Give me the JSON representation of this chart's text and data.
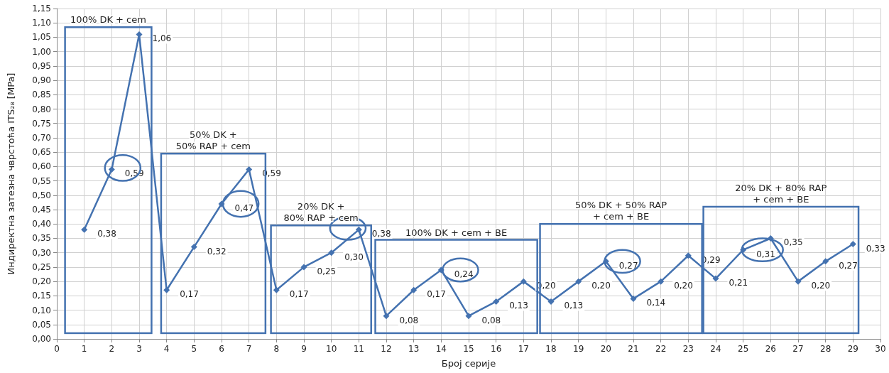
{
  "chart_data": {
    "type": "line",
    "xlabel": "Број серије",
    "ylabel": "Индиректна затезна чврстоћа ITS₂₈ [MPa]",
    "x": [
      1,
      2,
      3,
      4,
      5,
      6,
      7,
      8,
      9,
      10,
      11,
      12,
      13,
      14,
      15,
      16,
      17,
      18,
      19,
      20,
      21,
      22,
      23,
      24,
      25,
      26,
      27,
      28,
      29
    ],
    "series": [
      {
        "color": "#4472b0",
        "values": [
          0.38,
          0.59,
          1.06,
          0.17,
          0.32,
          0.47,
          0.59,
          0.17,
          0.25,
          0.3,
          0.38,
          0.08,
          0.17,
          0.24,
          0.08,
          0.13,
          0.2,
          0.13,
          0.2,
          0.27,
          0.14,
          0.2,
          0.29,
          0.21,
          0.31,
          0.35,
          0.2,
          0.27,
          0.33
        ],
        "value_labels": [
          "0,38",
          "0,59",
          "1,06",
          "0,17",
          "0,32",
          "0,47",
          "0,59",
          "0,17",
          "0,25",
          "0,30",
          "0,38",
          "0,08",
          "0,17",
          "0,24",
          "0,08",
          "0,13",
          "0,20",
          "0,13",
          "0,20",
          "0,27",
          "0,14",
          "0,20",
          "0,29",
          "0,21",
          "0,31",
          "0,35",
          "0,20",
          "0,27",
          "0,33"
        ]
      }
    ],
    "xlim": [
      0,
      30
    ],
    "xticks": [
      0,
      1,
      2,
      3,
      4,
      5,
      6,
      7,
      8,
      9,
      10,
      11,
      12,
      13,
      14,
      15,
      16,
      17,
      18,
      19,
      20,
      21,
      22,
      23,
      24,
      25,
      26,
      27,
      28,
      29,
      30
    ],
    "ylim": [
      0,
      1.15
    ],
    "yticks": [
      {
        "value": 0,
        "label": "0,00"
      },
      {
        "value": 0.05,
        "label": "0,05"
      },
      {
        "value": 0.1,
        "label": "0,10"
      },
      {
        "value": 0.15,
        "label": "0,15"
      },
      {
        "value": 0.2,
        "label": "0,20"
      },
      {
        "value": 0.25,
        "label": "0,25"
      },
      {
        "value": 0.3,
        "label": "0,30"
      },
      {
        "value": 0.35,
        "label": "0,35"
      },
      {
        "value": 0.4,
        "label": "0,40"
      },
      {
        "value": 0.45,
        "label": "0,45"
      },
      {
        "value": 0.5,
        "label": "0,50"
      },
      {
        "value": 0.55,
        "label": "0,55"
      },
      {
        "value": 0.6,
        "label": "0,60"
      },
      {
        "value": 0.65,
        "label": "0,65"
      },
      {
        "value": 0.7,
        "label": "0,70"
      },
      {
        "value": 0.75,
        "label": "0,75"
      },
      {
        "value": 0.8,
        "label": "0,80"
      },
      {
        "value": 0.85,
        "label": "0,85"
      },
      {
        "value": 0.9,
        "label": "0,90"
      },
      {
        "value": 0.95,
        "label": "0,95"
      },
      {
        "value": 1.0,
        "label": "1,00"
      },
      {
        "value": 1.05,
        "label": "1,05"
      },
      {
        "value": 1.1,
        "label": "1,10"
      },
      {
        "value": 1.15,
        "label": "1,15"
      }
    ],
    "annotations": [
      "100% DK + cem",
      "50% DK +\n50% RAP + cem",
      "20% DK +\n80% RAP + cem",
      "100% DK + cem + BE",
      "50% DK + 50% RAP\n+ cem + BE",
      "20% DK + 80% RAP\n+ cem + BE"
    ],
    "grid": true,
    "marker": "diamond",
    "line_style": "solid"
  }
}
